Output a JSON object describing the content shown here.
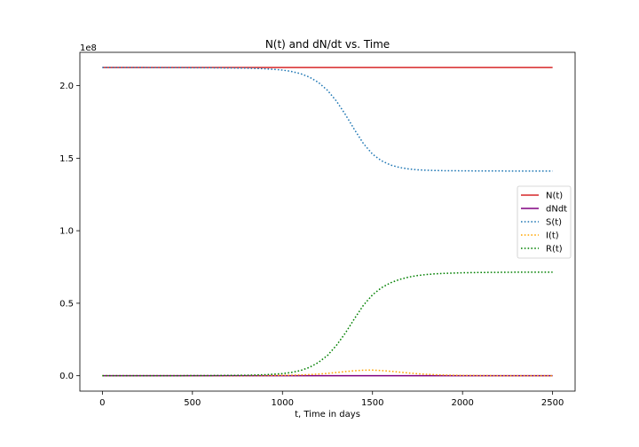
{
  "chart_data": {
    "type": "line",
    "title": "N(t) and dN/dt vs. Time",
    "xlabel": "t, Time in days",
    "ylabel": "",
    "y_offset_text": "1e8",
    "xlim": [
      -125,
      2625
    ],
    "ylim": [
      -10600000,
      223000000
    ],
    "x_ticks": [
      0,
      500,
      1000,
      1500,
      2000,
      2500
    ],
    "x_tick_labels": [
      "0",
      "500",
      "1000",
      "1500",
      "2000",
      "2500"
    ],
    "y_ticks": [
      0,
      50000000,
      100000000,
      150000000,
      200000000
    ],
    "y_tick_labels": [
      "0.0",
      "0.5",
      "1.0",
      "1.5",
      "2.0"
    ],
    "grid": false,
    "legend_position": "center-right",
    "x": [
      0,
      200,
      400,
      600,
      800,
      900,
      1000,
      1050,
      1100,
      1150,
      1200,
      1250,
      1300,
      1350,
      1400,
      1450,
      1500,
      1550,
      1600,
      1650,
      1700,
      1750,
      1800,
      1850,
      1900,
      2000,
      2100,
      2200,
      2300,
      2400,
      2500
    ],
    "series": [
      {
        "name": "N(t)",
        "color": "#d62728",
        "style": "solid",
        "values": [
          212500000,
          212500000,
          212500000,
          212500000,
          212500000,
          212500000,
          212500000,
          212500000,
          212500000,
          212500000,
          212500000,
          212500000,
          212500000,
          212500000,
          212500000,
          212500000,
          212500000,
          212500000,
          212500000,
          212500000,
          212500000,
          212500000,
          212500000,
          212500000,
          212500000,
          212500000,
          212500000,
          212500000,
          212500000,
          212500000,
          212500000
        ]
      },
      {
        "name": "dNdt",
        "color": "#800080",
        "style": "solid",
        "values": [
          0,
          0,
          0,
          0,
          0,
          0,
          0,
          0,
          0,
          0,
          0,
          0,
          0,
          0,
          0,
          0,
          0,
          0,
          0,
          0,
          0,
          0,
          0,
          0,
          0,
          0,
          0,
          0,
          0,
          0,
          0
        ]
      },
      {
        "name": "S(t)",
        "color": "#1f77b4",
        "style": "dotted",
        "values": [
          212500000,
          212500000,
          212450000,
          212350000,
          212100000,
          211700000,
          210800000,
          209800000,
          208300000,
          205900000,
          202200000,
          196800000,
          189300000,
          180000000,
          169700000,
          160000000,
          152800000,
          148200000,
          145300000,
          143600000,
          142600000,
          142000000,
          141700000,
          141500000,
          141400000,
          141300000,
          141200000,
          141200000,
          141100000,
          141100000,
          141100000
        ]
      },
      {
        "name": "I(t)",
        "color": "#ffa500",
        "style": "dotted",
        "values": [
          0,
          0,
          5000,
          20000,
          60000,
          120000,
          250000,
          380000,
          560000,
          800000,
          1150000,
          1650000,
          2250000,
          2900000,
          3450000,
          3850000,
          3900000,
          3600000,
          3100000,
          2500000,
          1900000,
          1400000,
          1000000,
          700000,
          480000,
          220000,
          100000,
          45000,
          20000,
          10000,
          5000
        ]
      },
      {
        "name": "R(t)",
        "color": "#008000",
        "style": "dotted",
        "values": [
          0,
          0,
          40000,
          130000,
          340000,
          680000,
          1450000,
          2300000,
          3600000,
          5800000,
          9200000,
          14000000,
          21000000,
          29600000,
          39400000,
          48700000,
          55800000,
          60700000,
          64100000,
          66400000,
          68000000,
          69100000,
          69800000,
          70300000,
          70600000,
          71000000,
          71200000,
          71300000,
          71400000,
          71400000,
          71400000
        ]
      }
    ]
  }
}
